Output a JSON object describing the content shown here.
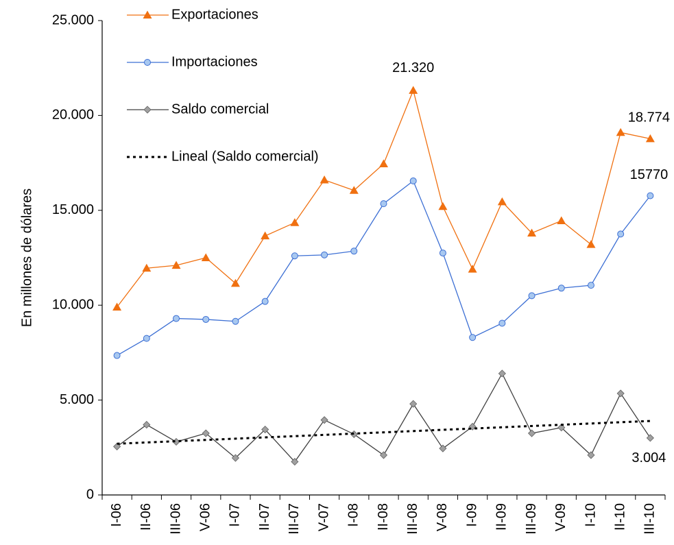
{
  "chart_data": {
    "type": "line",
    "y_label": "En millones de dólares",
    "categories": [
      "I-06",
      "II-06",
      "III-06",
      "V-06",
      "I-07",
      "II-07",
      "III-07",
      "V-07",
      "I-08",
      "II-08",
      "III-08",
      "V-08",
      "I-09",
      "II-09",
      "III-09",
      "V-09",
      "I-10",
      "II-10",
      "III-10"
    ],
    "series": [
      {
        "name": "Exportaciones",
        "color": "#f07010",
        "marker": "triangle",
        "values": [
          9900,
          11950,
          12100,
          12500,
          11150,
          13650,
          14350,
          16600,
          16050,
          17450,
          21320,
          15200,
          11900,
          15450,
          13800,
          14450,
          13200,
          19100,
          18774
        ],
        "value_labels": [
          null,
          null,
          null,
          null,
          null,
          null,
          null,
          null,
          null,
          null,
          "21.320",
          null,
          null,
          null,
          null,
          null,
          null,
          null,
          "18.774"
        ]
      },
      {
        "name": "Importaciones",
        "color": "#3c6fd4",
        "marker": "circle",
        "values": [
          7350,
          8250,
          9300,
          9250,
          9150,
          10200,
          12600,
          12650,
          12850,
          15350,
          16550,
          12750,
          8300,
          9050,
          10500,
          10900,
          11050,
          13750,
          15770
        ],
        "value_labels": [
          null,
          null,
          null,
          null,
          null,
          null,
          null,
          null,
          null,
          null,
          null,
          null,
          null,
          null,
          null,
          null,
          null,
          null,
          "15770"
        ]
      },
      {
        "name": "Saldo comercial",
        "color": "#404040",
        "marker": "diamond",
        "values": [
          2550,
          3700,
          2800,
          3250,
          1950,
          3450,
          1750,
          3950,
          3200,
          2100,
          4800,
          2450,
          3600,
          6400,
          3250,
          3550,
          2100,
          5350,
          3004
        ],
        "value_labels": [
          null,
          null,
          null,
          null,
          null,
          null,
          null,
          null,
          null,
          null,
          null,
          null,
          null,
          null,
          null,
          null,
          null,
          null,
          "3.004"
        ]
      }
    ],
    "trend": {
      "name": "Lineal (Saldo comercial)",
      "color": "#000000",
      "start": 2700,
      "end": 3900
    },
    "ylim": [
      0,
      25000
    ],
    "yticks": [
      0,
      {
        "value": 5000,
        "label": "5.000"
      },
      {
        "value": 10000,
        "label": "10.000"
      },
      {
        "value": 15000,
        "label": "15.000"
      },
      {
        "value": 20000,
        "label": "20.000"
      },
      {
        "value": 25000,
        "label": "25.000"
      }
    ],
    "grid": false
  }
}
